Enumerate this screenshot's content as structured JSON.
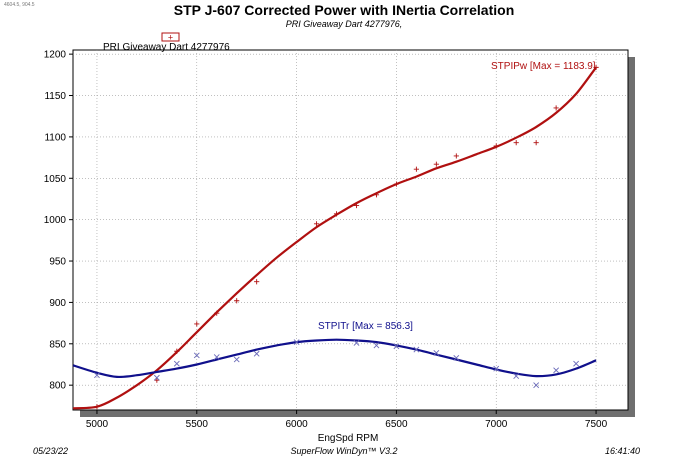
{
  "header": {
    "corner_note": "4604.5, 904.5",
    "title": "STP J-607 Corrected Power with INertia Correlation",
    "subtitle": "PRI Giveaway Dart 4277976,"
  },
  "legend": {
    "label": "PRI Giveaway Dart 4277976",
    "marker": "+"
  },
  "footer": {
    "date": "05/23/22",
    "software": "SuperFlow WinDyn™ V3.2",
    "time": "16:41:40"
  },
  "colors": {
    "power": "#b01010",
    "torque": "#10108c",
    "grid": "#9a9a9a",
    "shadow": "#6f6f6f"
  },
  "chart_data": {
    "type": "line",
    "xlabel": "EngSpd RPM",
    "ylabel": "",
    "xlim": [
      4880,
      7660
    ],
    "ylim": [
      770,
      1205
    ],
    "xticks": [
      5000,
      5500,
      6000,
      6500,
      7000,
      7500
    ],
    "yticks": [
      800,
      850,
      900,
      950,
      1000,
      1050,
      1100,
      1150,
      1200
    ],
    "grid": true,
    "series": [
      {
        "name": "STPIPw",
        "annotation": "STPIPw [Max = 1183.9]",
        "color": "#b01010",
        "marker": "+",
        "curve": [
          [
            4880,
            772
          ],
          [
            5000,
            774
          ],
          [
            5100,
            785
          ],
          [
            5200,
            800
          ],
          [
            5300,
            818
          ],
          [
            5400,
            840
          ],
          [
            5500,
            864
          ],
          [
            5600,
            888
          ],
          [
            5700,
            911
          ],
          [
            5800,
            933
          ],
          [
            5900,
            954
          ],
          [
            6000,
            973
          ],
          [
            6100,
            991
          ],
          [
            6200,
            1006
          ],
          [
            6300,
            1020
          ],
          [
            6400,
            1032
          ],
          [
            6500,
            1043
          ],
          [
            6600,
            1052
          ],
          [
            6700,
            1062
          ],
          [
            6800,
            1070
          ],
          [
            6900,
            1079
          ],
          [
            7000,
            1088
          ],
          [
            7100,
            1099
          ],
          [
            7200,
            1112
          ],
          [
            7300,
            1129
          ],
          [
            7400,
            1152
          ],
          [
            7500,
            1184
          ]
        ],
        "points": [
          [
            5000,
            774
          ],
          [
            5300,
            806
          ],
          [
            5400,
            841
          ],
          [
            5500,
            874
          ],
          [
            5600,
            887
          ],
          [
            5700,
            902
          ],
          [
            5800,
            925
          ],
          [
            6100,
            995
          ],
          [
            6200,
            1007
          ],
          [
            6300,
            1017
          ],
          [
            6400,
            1030
          ],
          [
            6500,
            1043
          ],
          [
            6600,
            1061
          ],
          [
            6700,
            1067
          ],
          [
            6800,
            1077
          ],
          [
            7000,
            1089
          ],
          [
            7100,
            1093
          ],
          [
            7200,
            1093
          ],
          [
            7300,
            1135
          ],
          [
            7500,
            1184
          ]
        ]
      },
      {
        "name": "STPITr",
        "annotation": "STPITr [Max = 856.3]",
        "color": "#10108c",
        "marker": "x",
        "curve": [
          [
            4880,
            824
          ],
          [
            5000,
            815
          ],
          [
            5100,
            810
          ],
          [
            5200,
            812
          ],
          [
            5300,
            816
          ],
          [
            5400,
            820
          ],
          [
            5500,
            825
          ],
          [
            5600,
            831
          ],
          [
            5700,
            837
          ],
          [
            5800,
            843
          ],
          [
            5900,
            848
          ],
          [
            6000,
            852
          ],
          [
            6100,
            854
          ],
          [
            6200,
            855
          ],
          [
            6300,
            854
          ],
          [
            6400,
            852
          ],
          [
            6500,
            848
          ],
          [
            6600,
            843
          ],
          [
            6700,
            837
          ],
          [
            6800,
            831
          ],
          [
            6900,
            825
          ],
          [
            7000,
            819
          ],
          [
            7100,
            814
          ],
          [
            7200,
            811
          ],
          [
            7300,
            813
          ],
          [
            7400,
            820
          ],
          [
            7500,
            830
          ]
        ],
        "points": [
          [
            5000,
            812
          ],
          [
            5300,
            809
          ],
          [
            5400,
            826
          ],
          [
            5500,
            836
          ],
          [
            5600,
            834
          ],
          [
            5700,
            831
          ],
          [
            5800,
            838
          ],
          [
            6000,
            852
          ],
          [
            6300,
            851
          ],
          [
            6400,
            848
          ],
          [
            6500,
            847
          ],
          [
            6600,
            843
          ],
          [
            6700,
            839
          ],
          [
            6800,
            833
          ],
          [
            7000,
            820
          ],
          [
            7100,
            811
          ],
          [
            7200,
            800
          ],
          [
            7300,
            818
          ],
          [
            7400,
            826
          ]
        ]
      }
    ]
  }
}
